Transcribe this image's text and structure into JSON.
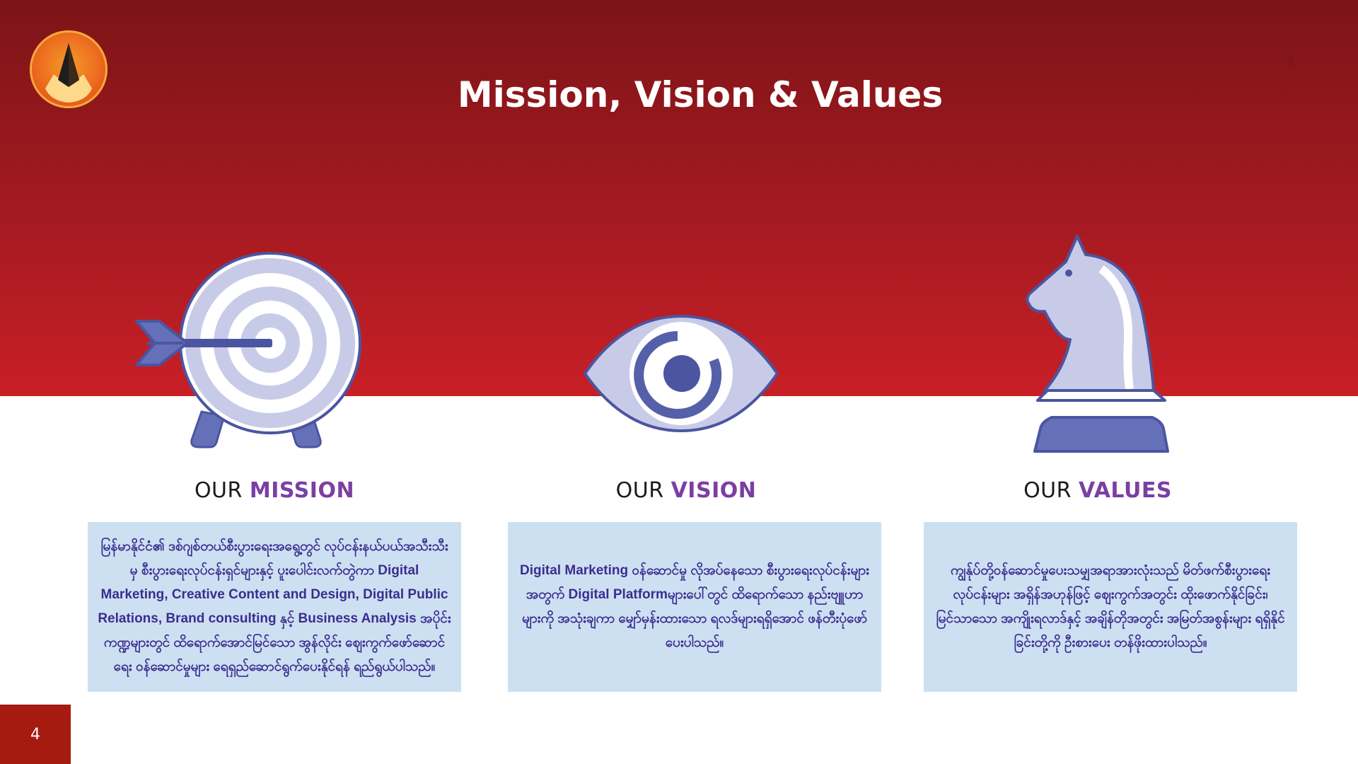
{
  "slide": {
    "title": "Mission, Vision & Values",
    "page_number_top": "4",
    "page_number_badge": "4"
  },
  "icons": {
    "logo": "company-logo",
    "mission": "target-arrow-icon",
    "vision": "eye-icon",
    "values": "chess-knight-icon"
  },
  "colors": {
    "header_red": "#a51a21",
    "accent_purple": "#7b3fa4",
    "box_blue": "#cde0f2",
    "text_indigo": "#3b2d8f"
  },
  "sections": [
    {
      "heading_prefix": "OUR",
      "heading_accent": "MISSION",
      "body": "မြန်မာနိုင်ငံ၏ ဒစ်ဂျစ်တယ်စီးပွားရေးအရွေ့တွင် လုပ်ငန်းနယ်ပယ်အသီးသီးမှ စီးပွားရေးလုပ်ငန်းရှင်များနှင့် ပူးပေါင်းလက်တွဲကာ Digital Marketing, Creative Content and Design, Digital Public Relations, Brand consulting နှင့် Business Analysis အပိုင်းကဏ္ဍများတွင် ထိရောက်အောင်မြင်သော အွန်လိုင်း ဈေးကွက်ဖော်ဆောင်ရေး ဝန်ဆောင်မှုများ ရေရှည်ဆောင်ရွက်ပေးနိုင်ရန် ရည်ရွယ်ပါသည်။"
    },
    {
      "heading_prefix": "OUR",
      "heading_accent": "VISION",
      "body": "Digital Marketing ဝန်ဆောင်မှု လိုအပ်နေသော စီးပွားရေးလုပ်ငန်းများအတွက် Digital Platformများပေါ်တွင် ထိရောက်သော နည်းဗျူဟာများကို အသုံးချကာ မျှော်မှန်းထားသော ရလဒ်များရရှိအောင် ဖန်တီးပုံဖော်ပေးပါသည်။"
    },
    {
      "heading_prefix": "OUR",
      "heading_accent": "VALUES",
      "body": "ကျွန်ုပ်တို့ဝန်ဆောင်မှုပေးသမျှအရာအားလုံးသည် မိတ်ဖက်စီးပွားရေးလုပ်ငန်းများ အရှိန်အဟုန်ဖြင့် ဈေးကွက်အတွင်း ထိုးဖောက်နိုင်ခြင်း၊ မြင်သာသော အကျိုးရလာဒ်နှင့် အချိန်တိုအတွင်း အမြတ်အစွန်းများ ရရှိနိုင်ခြင်းတို့ကို ဦးစားပေး တန်ဖိုးထားပါသည်။"
    }
  ]
}
